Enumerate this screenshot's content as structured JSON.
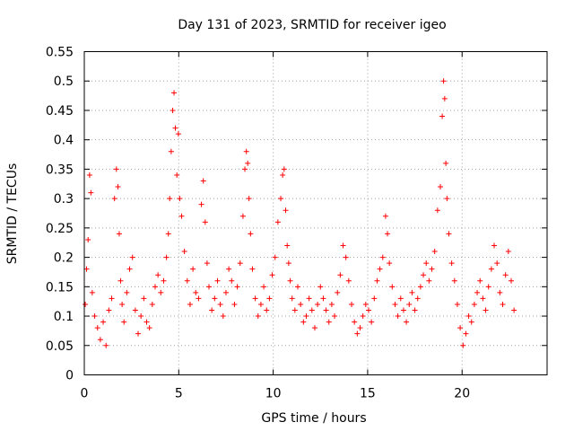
{
  "chart_data": {
    "type": "scatter",
    "title": "Day 131 of 2023, SRMTID for receiver igeo",
    "xlabel": "GPS time / hours",
    "ylabel": "SRMTID / TECUs",
    "xlim": [
      0,
      24.5
    ],
    "ylim": [
      0,
      0.55
    ],
    "grid": true,
    "marker": "+",
    "series_color": "#ff0000",
    "x_ticks": [
      {
        "value": 0,
        "label": "0"
      },
      {
        "value": 5,
        "label": "5"
      },
      {
        "value": 10,
        "label": "10"
      },
      {
        "value": 15,
        "label": "15"
      },
      {
        "value": 20,
        "label": "20"
      }
    ],
    "y_ticks": [
      {
        "value": 0,
        "label": "0"
      },
      {
        "value": 0.05,
        "label": "0.05"
      },
      {
        "value": 0.1,
        "label": "0.1"
      },
      {
        "value": 0.15,
        "label": "0.15"
      },
      {
        "value": 0.2,
        "label": "0.2"
      },
      {
        "value": 0.25,
        "label": "0.25"
      },
      {
        "value": 0.3,
        "label": "0.3"
      },
      {
        "value": 0.35,
        "label": "0.35"
      },
      {
        "value": 0.4,
        "label": "0.4"
      },
      {
        "value": 0.45,
        "label": "0.45"
      },
      {
        "value": 0.5,
        "label": "0.5"
      },
      {
        "value": 0.55,
        "label": "0.55"
      }
    ],
    "x": [
      0.05,
      0.12,
      0.2,
      0.28,
      0.35,
      0.42,
      0.55,
      0.7,
      0.85,
      1.0,
      1.15,
      1.3,
      1.45,
      1.6,
      1.7,
      1.78,
      1.85,
      1.92,
      2.0,
      2.1,
      2.25,
      2.4,
      2.55,
      2.7,
      2.85,
      3.0,
      3.15,
      3.3,
      3.45,
      3.6,
      3.75,
      3.9,
      4.05,
      4.2,
      4.35,
      4.45,
      4.52,
      4.6,
      4.68,
      4.75,
      4.82,
      4.9,
      4.98,
      5.05,
      5.15,
      5.3,
      5.45,
      5.6,
      5.75,
      5.9,
      6.05,
      6.2,
      6.3,
      6.4,
      6.5,
      6.6,
      6.75,
      6.9,
      7.05,
      7.2,
      7.35,
      7.5,
      7.65,
      7.8,
      7.95,
      8.1,
      8.25,
      8.4,
      8.5,
      8.58,
      8.65,
      8.72,
      8.8,
      8.9,
      9.05,
      9.2,
      9.35,
      9.5,
      9.65,
      9.8,
      9.95,
      10.1,
      10.25,
      10.4,
      10.5,
      10.58,
      10.66,
      10.74,
      10.82,
      10.9,
      11.0,
      11.15,
      11.3,
      11.45,
      11.6,
      11.75,
      11.9,
      12.05,
      12.2,
      12.35,
      12.5,
      12.65,
      12.8,
      12.95,
      13.1,
      13.25,
      13.4,
      13.55,
      13.7,
      13.85,
      14.0,
      14.15,
      14.3,
      14.45,
      14.6,
      14.75,
      14.9,
      15.05,
      15.2,
      15.35,
      15.5,
      15.65,
      15.8,
      15.95,
      16.05,
      16.15,
      16.3,
      16.45,
      16.6,
      16.75,
      16.9,
      17.05,
      17.2,
      17.35,
      17.5,
      17.65,
      17.8,
      17.95,
      18.1,
      18.25,
      18.4,
      18.55,
      18.7,
      18.85,
      18.95,
      19.02,
      19.08,
      19.14,
      19.2,
      19.3,
      19.45,
      19.6,
      19.75,
      19.9,
      20.05,
      20.2,
      20.35,
      20.5,
      20.65,
      20.8,
      20.95,
      21.1,
      21.25,
      21.4,
      21.55,
      21.7,
      21.85,
      22.0,
      22.15,
      22.3,
      22.45,
      22.6,
      22.75
    ],
    "y": [
      0.12,
      0.18,
      0.23,
      0.34,
      0.31,
      0.14,
      0.1,
      0.08,
      0.06,
      0.09,
      0.05,
      0.11,
      0.13,
      0.3,
      0.35,
      0.32,
      0.24,
      0.16,
      0.12,
      0.09,
      0.14,
      0.18,
      0.2,
      0.11,
      0.07,
      0.1,
      0.13,
      0.09,
      0.08,
      0.12,
      0.15,
      0.17,
      0.14,
      0.16,
      0.2,
      0.24,
      0.3,
      0.38,
      0.45,
      0.48,
      0.42,
      0.34,
      0.41,
      0.3,
      0.27,
      0.21,
      0.16,
      0.12,
      0.18,
      0.14,
      0.13,
      0.29,
      0.33,
      0.26,
      0.19,
      0.15,
      0.11,
      0.13,
      0.16,
      0.12,
      0.1,
      0.14,
      0.18,
      0.16,
      0.12,
      0.15,
      0.19,
      0.27,
      0.35,
      0.38,
      0.36,
      0.3,
      0.24,
      0.18,
      0.13,
      0.1,
      0.12,
      0.15,
      0.11,
      0.13,
      0.17,
      0.2,
      0.26,
      0.3,
      0.34,
      0.35,
      0.28,
      0.22,
      0.19,
      0.16,
      0.13,
      0.11,
      0.15,
      0.12,
      0.09,
      0.1,
      0.13,
      0.11,
      0.08,
      0.12,
      0.15,
      0.13,
      0.11,
      0.09,
      0.12,
      0.1,
      0.14,
      0.17,
      0.22,
      0.2,
      0.16,
      0.12,
      0.09,
      0.07,
      0.08,
      0.1,
      0.12,
      0.11,
      0.09,
      0.13,
      0.16,
      0.18,
      0.2,
      0.27,
      0.24,
      0.19,
      0.15,
      0.12,
      0.1,
      0.13,
      0.11,
      0.09,
      0.12,
      0.14,
      0.11,
      0.13,
      0.15,
      0.17,
      0.19,
      0.16,
      0.18,
      0.21,
      0.28,
      0.32,
      0.44,
      0.5,
      0.47,
      0.36,
      0.3,
      0.24,
      0.19,
      0.16,
      0.12,
      0.08,
      0.05,
      0.07,
      0.1,
      0.09,
      0.12,
      0.14,
      0.16,
      0.13,
      0.11,
      0.15,
      0.18,
      0.22,
      0.19,
      0.14,
      0.12,
      0.17,
      0.21,
      0.16,
      0.11
    ]
  }
}
